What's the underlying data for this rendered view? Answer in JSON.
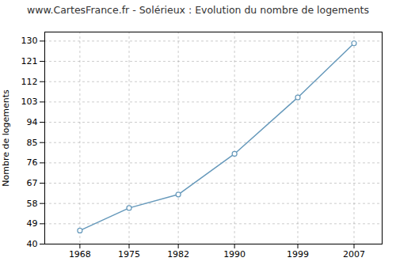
{
  "chart_data": {
    "type": "line",
    "title": "www.CartesFrance.fr - Solérieux : Evolution du nombre de logements",
    "ylabel": "Nombre de logements",
    "x": [
      1968,
      1975,
      1982,
      1990,
      1999,
      2007
    ],
    "values": [
      46,
      56,
      62,
      80,
      105,
      129
    ],
    "color": "#6699bb",
    "marker": "circle",
    "xlim": [
      1963,
      2011
    ],
    "ylim": [
      40,
      134
    ],
    "xticks": [
      1968,
      1975,
      1982,
      1990,
      1999,
      2007
    ],
    "yticks": [
      40,
      49,
      58,
      67,
      76,
      85,
      94,
      103,
      112,
      121,
      130
    ],
    "grid": true
  }
}
